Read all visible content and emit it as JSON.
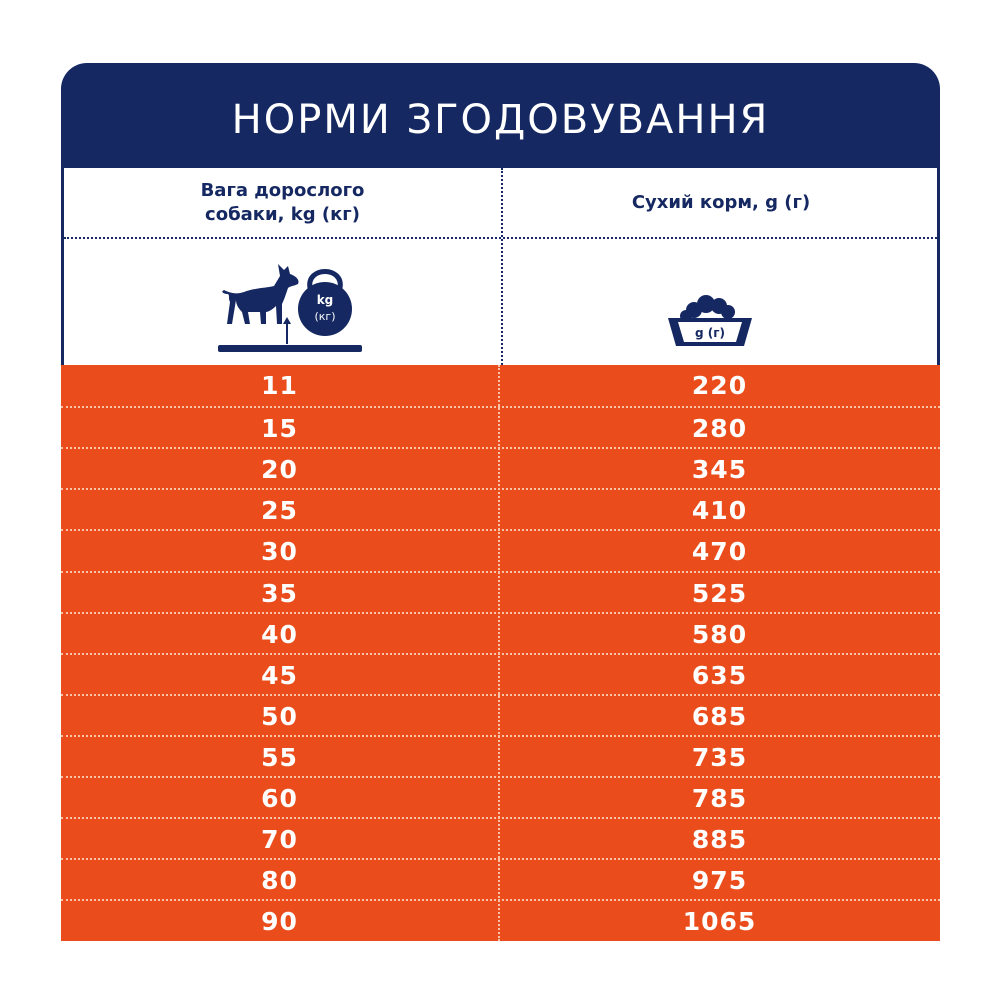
{
  "header": {
    "title": "НОРМИ ЗГОДОВУВАННЯ"
  },
  "columns": {
    "left_line1": "Вага дорослого",
    "left_line2": "собаки, kg (кг)",
    "right": "Сухий корм, g (г)"
  },
  "icons": {
    "weight_icon": {
      "name": "dog-kettlebell-icon",
      "unit_line1": "kg",
      "unit_line2": "(кг)"
    },
    "bowl_icon": {
      "name": "food-bowl-icon",
      "unit": "g (г)"
    }
  },
  "colors": {
    "navy": "#152862",
    "orange": "#ea4d1b",
    "white": "#ffffff"
  },
  "rows": [
    {
      "weight": "11",
      "food": "220"
    },
    {
      "weight": "15",
      "food": "280"
    },
    {
      "weight": "20",
      "food": "345"
    },
    {
      "weight": "25",
      "food": "410"
    },
    {
      "weight": "30",
      "food": "470"
    },
    {
      "weight": "35",
      "food": "525"
    },
    {
      "weight": "40",
      "food": "580"
    },
    {
      "weight": "45",
      "food": "635"
    },
    {
      "weight": "50",
      "food": "685"
    },
    {
      "weight": "55",
      "food": "735"
    },
    {
      "weight": "60",
      "food": "785"
    },
    {
      "weight": "70",
      "food": "885"
    },
    {
      "weight": "80",
      "food": "975"
    },
    {
      "weight": "90",
      "food": "1065"
    }
  ]
}
